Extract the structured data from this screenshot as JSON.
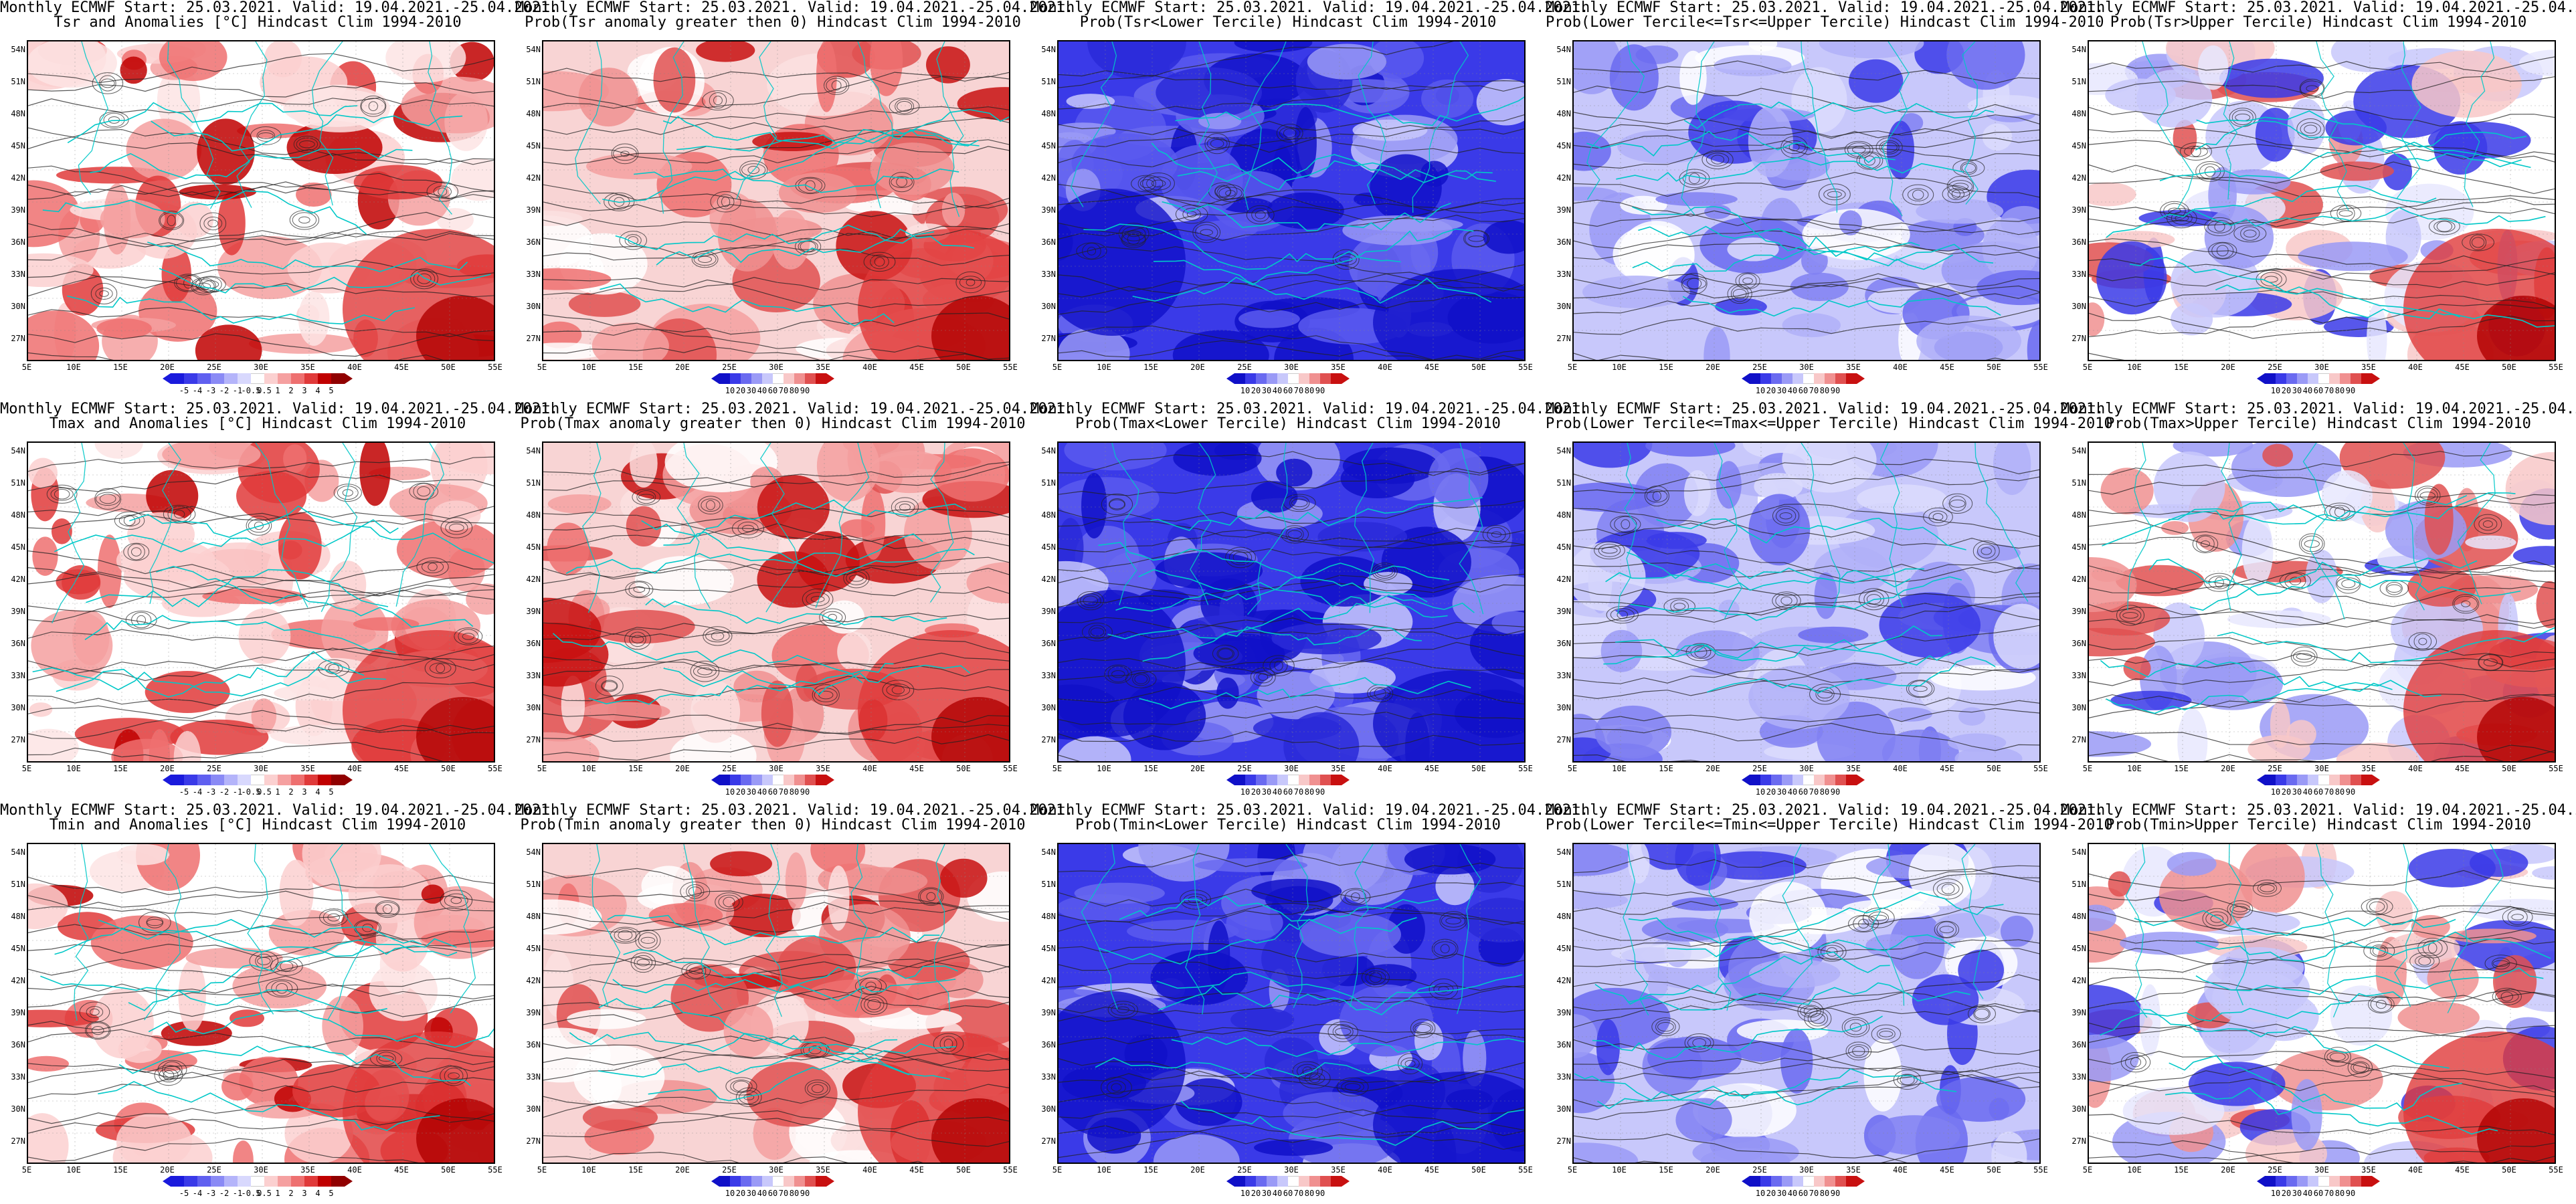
{
  "title_line1": "Monthly ECMWF Start: 25.03.2021. Valid: 19.04.2021.-25.04.2021.",
  "lat_labels": [
    "54N",
    "51N",
    "48N",
    "45N",
    "42N",
    "39N",
    "36N",
    "33N",
    "30N",
    "27N"
  ],
  "lon_labels": [
    "5E",
    "10E",
    "15E",
    "20E",
    "25E",
    "30E",
    "35E",
    "40E",
    "45E",
    "50E",
    "55E"
  ],
  "scales": {
    "anom": {
      "ticks": [
        "-5",
        "-4",
        "-3",
        "-2",
        "-1",
        "-0.5",
        "0.5",
        "1",
        "2",
        "3",
        "4",
        "5"
      ],
      "colors": [
        "#1a1adc",
        "#3a3ae8",
        "#6060f0",
        "#8a8af5",
        "#b4b4fa",
        "#d8d8fd",
        "#ffffff",
        "#fbd0d0",
        "#f5a0a0",
        "#ee7070",
        "#e03a3a",
        "#c00000",
        "#900000"
      ]
    },
    "prob": {
      "ticks": [
        "10",
        "20",
        "30",
        "40",
        "60",
        "70",
        "80",
        "90"
      ],
      "colors": [
        "#1010c8",
        "#3a3ae8",
        "#6a6af0",
        "#9a9af6",
        "#c8c8fb",
        "#ffffff",
        "#f8c8c8",
        "#f09090",
        "#e05050",
        "#c81010"
      ]
    }
  },
  "panels": [
    {
      "title2": "Tsr and Anomalies [°C] Hindcast Clim 1994-2010",
      "scale": "anom",
      "theme": "red",
      "seed": 3
    },
    {
      "title2": "Prob(Tsr anomaly greater then 0) Hindcast Clim 1994-2010",
      "scale": "prob",
      "theme": "red2",
      "seed": 5
    },
    {
      "title2": "Prob(Tsr<Lower Tercile) Hindcast Clim 1994-2010",
      "scale": "prob",
      "theme": "blue",
      "seed": 7
    },
    {
      "title2": "Prob(Lower Tercile<=Tsr<=Upper Tercile) Hindcast Clim 1994-2010",
      "scale": "prob",
      "theme": "mid",
      "seed": 11
    },
    {
      "title2": "Prob(Tsr>Upper Tercile) Hindcast Clim 1994-2010",
      "scale": "prob",
      "theme": "upper",
      "seed": 13
    },
    {
      "title2": "Tmax and Anomalies [°C] Hindcast Clim 1994-2010",
      "scale": "anom",
      "theme": "red",
      "seed": 17
    },
    {
      "title2": "Prob(Tmax anomaly greater then 0) Hindcast Clim 1994-2010",
      "scale": "prob",
      "theme": "red2",
      "seed": 19
    },
    {
      "title2": "Prob(Tmax<Lower Tercile) Hindcast Clim 1994-2010",
      "scale": "prob",
      "theme": "blue",
      "seed": 23
    },
    {
      "title2": "Prob(Lower Tercile<=Tmax<=Upper Tercile) Hindcast Clim 1994-2010",
      "scale": "prob",
      "theme": "mid",
      "seed": 29
    },
    {
      "title2": "Prob(Tmax>Upper Tercile) Hindcast Clim 1994-2010",
      "scale": "prob",
      "theme": "upper",
      "seed": 31
    },
    {
      "title2": "Tmin and Anomalies [°C] Hindcast Clim 1994-2010",
      "scale": "anom",
      "theme": "red",
      "seed": 37
    },
    {
      "title2": "Prob(Tmin anomaly greater then 0) Hindcast Clim 1994-2010",
      "scale": "prob",
      "theme": "red2",
      "seed": 41
    },
    {
      "title2": "Prob(Tmin<Lower Tercile) Hindcast Clim 1994-2010",
      "scale": "prob",
      "theme": "blue",
      "seed": 43
    },
    {
      "title2": "Prob(Lower Tercile<=Tmin<=Upper Tercile) Hindcast Clim 1994-2010",
      "scale": "prob",
      "theme": "mid",
      "seed": 47
    },
    {
      "title2": "Prob(Tmin>Upper Tercile) Hindcast Clim 1994-2010",
      "scale": "prob",
      "theme": "upper",
      "seed": 53
    }
  ]
}
